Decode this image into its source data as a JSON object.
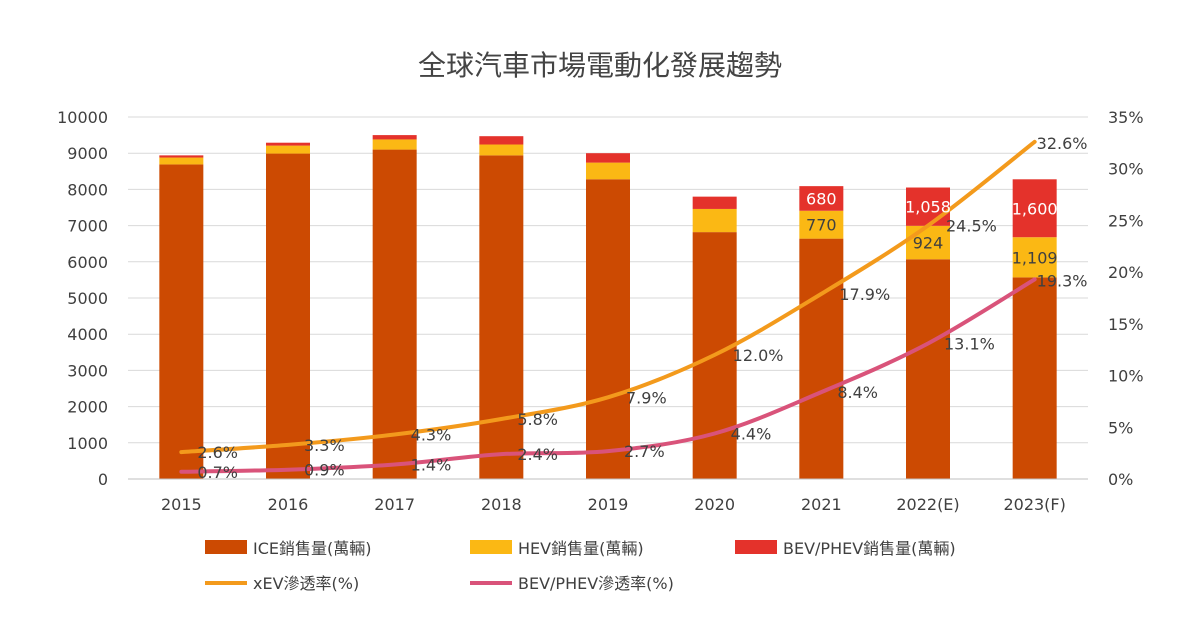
{
  "chart_data": {
    "type": "bar",
    "title": "全球汽車市場電動化發展趨勢",
    "categories": [
      "2015",
      "2016",
      "2017",
      "2018",
      "2019",
      "2020",
      "2021",
      "2022(E)",
      "2023(F)"
    ],
    "y_left": {
      "min": 0,
      "max": 10000,
      "ticks": [
        "0",
        "1000",
        "2000",
        "3000",
        "4000",
        "5000",
        "6000",
        "7000",
        "8000",
        "9000",
        "10000"
      ]
    },
    "y_right": {
      "min": 0,
      "max": 35,
      "ticks": [
        "0%",
        "5%",
        "10%",
        "15%",
        "20%",
        "25%",
        "30%",
        "35%"
      ]
    },
    "bar_series": [
      {
        "name": "ICE銷售量(萬輛)",
        "color": "#cc4a02",
        "values": [
          8690,
          8990,
          9100,
          8940,
          8280,
          6820,
          6640,
          6070,
          5570
        ],
        "labels": [
          "",
          "",
          "",
          "",
          "",
          "",
          "",
          "",
          ""
        ]
      },
      {
        "name": "HEV銷售量(萬輛)",
        "color": "#fbb814",
        "values": [
          190,
          220,
          280,
          300,
          460,
          640,
          770,
          924,
          1109
        ],
        "labels": [
          "",
          "",
          "",
          "",
          "",
          "",
          "770",
          "924",
          "1,109"
        ]
      },
      {
        "name": "BEV/PHEV銷售量(萬輛)",
        "color": "#e4322b",
        "values": [
          60,
          80,
          120,
          230,
          260,
          340,
          680,
          1058,
          1600
        ],
        "labels": [
          "",
          "",
          "",
          "",
          "",
          "",
          "680",
          "1,058",
          "1,600"
        ]
      }
    ],
    "line_series": [
      {
        "name": "xEV滲透率(%)",
        "color": "#f39a1c",
        "values": [
          2.6,
          3.3,
          4.3,
          5.8,
          7.9,
          12.0,
          17.9,
          24.5,
          32.6
        ],
        "labels": [
          "2.6%",
          "3.3%",
          "4.3%",
          "5.8%",
          "7.9%",
          "12.0%",
          "17.9%",
          "24.5%",
          "32.6%"
        ]
      },
      {
        "name": "BEV/PHEV滲透率(%)",
        "color": "#d9537a",
        "values": [
          0.7,
          0.9,
          1.4,
          2.4,
          2.7,
          4.4,
          8.4,
          13.1,
          19.3
        ],
        "labels": [
          "0.7%",
          "0.9%",
          "1.4%",
          "2.4%",
          "2.7%",
          "4.4%",
          "8.4%",
          "13.1%",
          "19.3%"
        ]
      }
    ],
    "grid": true,
    "legend_position": "bottom"
  }
}
